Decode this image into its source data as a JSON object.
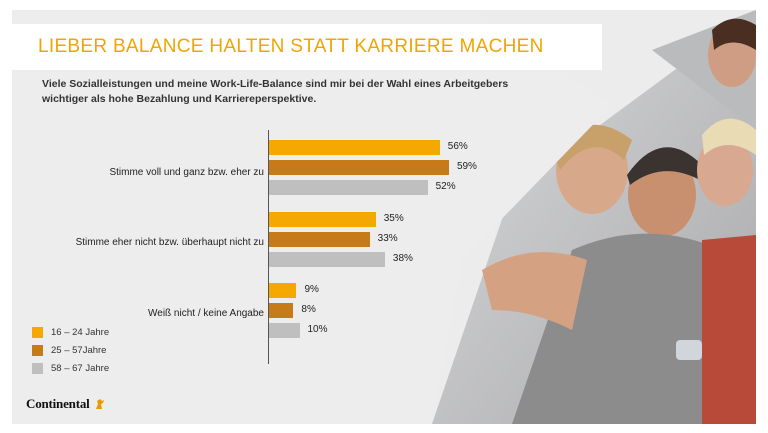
{
  "title": "LIEBER BALANCE HALTEN STATT KARRIERE MACHEN",
  "subtitle": "Viele Sozialleistungen und meine Work-Life-Balance sind mir bei der Wahl eines Arbeitgebers wichtiger als hohe Bezahlung und Karriereperspektive.",
  "logo": {
    "text": "Continental"
  },
  "colors": {
    "accent": "#f0a500",
    "series_1": "#f5a800",
    "series_2": "#c67a18",
    "series_3": "#bfbfbf"
  },
  "chart_data": {
    "type": "bar",
    "orientation": "horizontal",
    "categories": [
      "Stimme voll und ganz bzw. eher zu",
      "Stimme eher nicht bzw. überhaupt nicht zu",
      "Weiß nicht / keine Angabe"
    ],
    "series": [
      {
        "name": "16 – 24 Jahre",
        "values": [
          56,
          35,
          9
        ],
        "labels": [
          "56%",
          "35%",
          "9%"
        ],
        "color": "#f5a800"
      },
      {
        "name": "25 – 57Jahre",
        "values": [
          59,
          33,
          8
        ],
        "labels": [
          "59%",
          "33%",
          "8%"
        ],
        "color": "#c67a18"
      },
      {
        "name": "58 – 67 Jahre",
        "values": [
          52,
          38,
          10
        ],
        "labels": [
          "52%",
          "38%",
          "10%"
        ],
        "color": "#bfbfbf"
      }
    ],
    "xlim": [
      0,
      100
    ],
    "unit": "%",
    "grid": false,
    "legend": "bottom-left"
  }
}
